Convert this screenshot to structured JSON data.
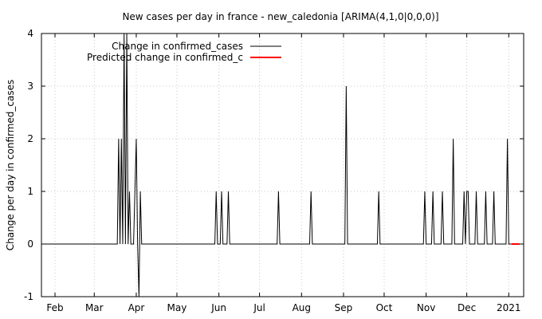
{
  "chart_data": {
    "type": "line",
    "title": "New cases per day in france - new_caledonia [ARIMA(4,1,0|0,0,0)]",
    "xlabel": "",
    "ylabel": "Change per day in confirmed_cases",
    "ylim": [
      -1,
      4
    ],
    "xlim": [
      "2020-01-22",
      "2021-01-12"
    ],
    "x_ticks": [
      {
        "label": "Feb",
        "date": "2020-02-01"
      },
      {
        "label": "Mar",
        "date": "2020-03-01"
      },
      {
        "label": "Apr",
        "date": "2020-04-01"
      },
      {
        "label": "May",
        "date": "2020-05-01"
      },
      {
        "label": "Jun",
        "date": "2020-06-01"
      },
      {
        "label": "Jul",
        "date": "2020-07-01"
      },
      {
        "label": "Aug",
        "date": "2020-08-01"
      },
      {
        "label": "Sep",
        "date": "2020-09-01"
      },
      {
        "label": "Oct",
        "date": "2020-10-01"
      },
      {
        "label": "Nov",
        "date": "2020-11-01"
      },
      {
        "label": "Dec",
        "date": "2020-12-01"
      },
      {
        "label": "2021",
        "date": "2021-01-01"
      }
    ],
    "y_ticks": [
      {
        "label": "-1",
        "value": -1
      },
      {
        "label": "0",
        "value": 0
      },
      {
        "label": "1",
        "value": 1
      },
      {
        "label": "2",
        "value": 2
      },
      {
        "label": "3",
        "value": 3
      },
      {
        "label": "4",
        "value": 4
      }
    ],
    "grid": true,
    "legend_position": "top-left",
    "series": [
      {
        "name": "Change in confirmed_cases",
        "color": "#000000",
        "points": [
          [
            "2020-01-22",
            0
          ],
          [
            "2020-03-18",
            0
          ],
          [
            "2020-03-19",
            2
          ],
          [
            "2020-03-20",
            0
          ],
          [
            "2020-03-21",
            2
          ],
          [
            "2020-03-22",
            0
          ],
          [
            "2020-03-23",
            4
          ],
          [
            "2020-03-24",
            0
          ],
          [
            "2020-03-25",
            4
          ],
          [
            "2020-03-26",
            0
          ],
          [
            "2020-03-27",
            1
          ],
          [
            "2020-03-28",
            0
          ],
          [
            "2020-03-30",
            0
          ],
          [
            "2020-03-31",
            1
          ],
          [
            "2020-04-01",
            2
          ],
          [
            "2020-04-02",
            0
          ],
          [
            "2020-04-03",
            -1
          ],
          [
            "2020-04-04",
            1
          ],
          [
            "2020-04-05",
            0
          ],
          [
            "2020-05-29",
            0
          ],
          [
            "2020-05-30",
            1
          ],
          [
            "2020-05-31",
            0
          ],
          [
            "2020-06-02",
            0
          ],
          [
            "2020-06-03",
            1
          ],
          [
            "2020-06-04",
            0
          ],
          [
            "2020-06-07",
            0
          ],
          [
            "2020-06-08",
            1
          ],
          [
            "2020-06-09",
            0
          ],
          [
            "2020-07-14",
            0
          ],
          [
            "2020-07-15",
            1
          ],
          [
            "2020-07-16",
            0
          ],
          [
            "2020-08-07",
            0
          ],
          [
            "2020-08-08",
            1
          ],
          [
            "2020-08-09",
            0
          ],
          [
            "2020-09-02",
            0
          ],
          [
            "2020-09-03",
            3
          ],
          [
            "2020-09-04",
            0
          ],
          [
            "2020-09-26",
            0
          ],
          [
            "2020-09-27",
            1
          ],
          [
            "2020-09-28",
            0
          ],
          [
            "2020-10-30",
            0
          ],
          [
            "2020-10-31",
            1
          ],
          [
            "2020-11-01",
            0
          ],
          [
            "2020-11-05",
            0
          ],
          [
            "2020-11-06",
            1
          ],
          [
            "2020-11-07",
            0
          ],
          [
            "2020-11-12",
            0
          ],
          [
            "2020-11-13",
            1
          ],
          [
            "2020-11-14",
            0
          ],
          [
            "2020-11-20",
            0
          ],
          [
            "2020-11-21",
            2
          ],
          [
            "2020-11-22",
            0
          ],
          [
            "2020-11-28",
            0
          ],
          [
            "2020-11-29",
            1
          ],
          [
            "2020-11-30",
            0
          ],
          [
            "2020-12-01",
            1
          ],
          [
            "2020-12-02",
            1
          ],
          [
            "2020-12-03",
            0
          ],
          [
            "2020-12-07",
            0
          ],
          [
            "2020-12-08",
            1
          ],
          [
            "2020-12-09",
            0
          ],
          [
            "2020-12-14",
            0
          ],
          [
            "2020-12-15",
            1
          ],
          [
            "2020-12-16",
            0
          ],
          [
            "2020-12-20",
            0
          ],
          [
            "2020-12-21",
            1
          ],
          [
            "2020-12-22",
            0
          ],
          [
            "2020-12-30",
            0
          ],
          [
            "2020-12-31",
            2
          ],
          [
            "2021-01-01",
            0
          ],
          [
            "2021-01-03",
            0
          ]
        ]
      },
      {
        "name": "Predicted change in confirmed_c",
        "color": "#ff0000",
        "points": [
          [
            "2021-01-03",
            0
          ],
          [
            "2021-01-09",
            0
          ]
        ]
      }
    ]
  }
}
